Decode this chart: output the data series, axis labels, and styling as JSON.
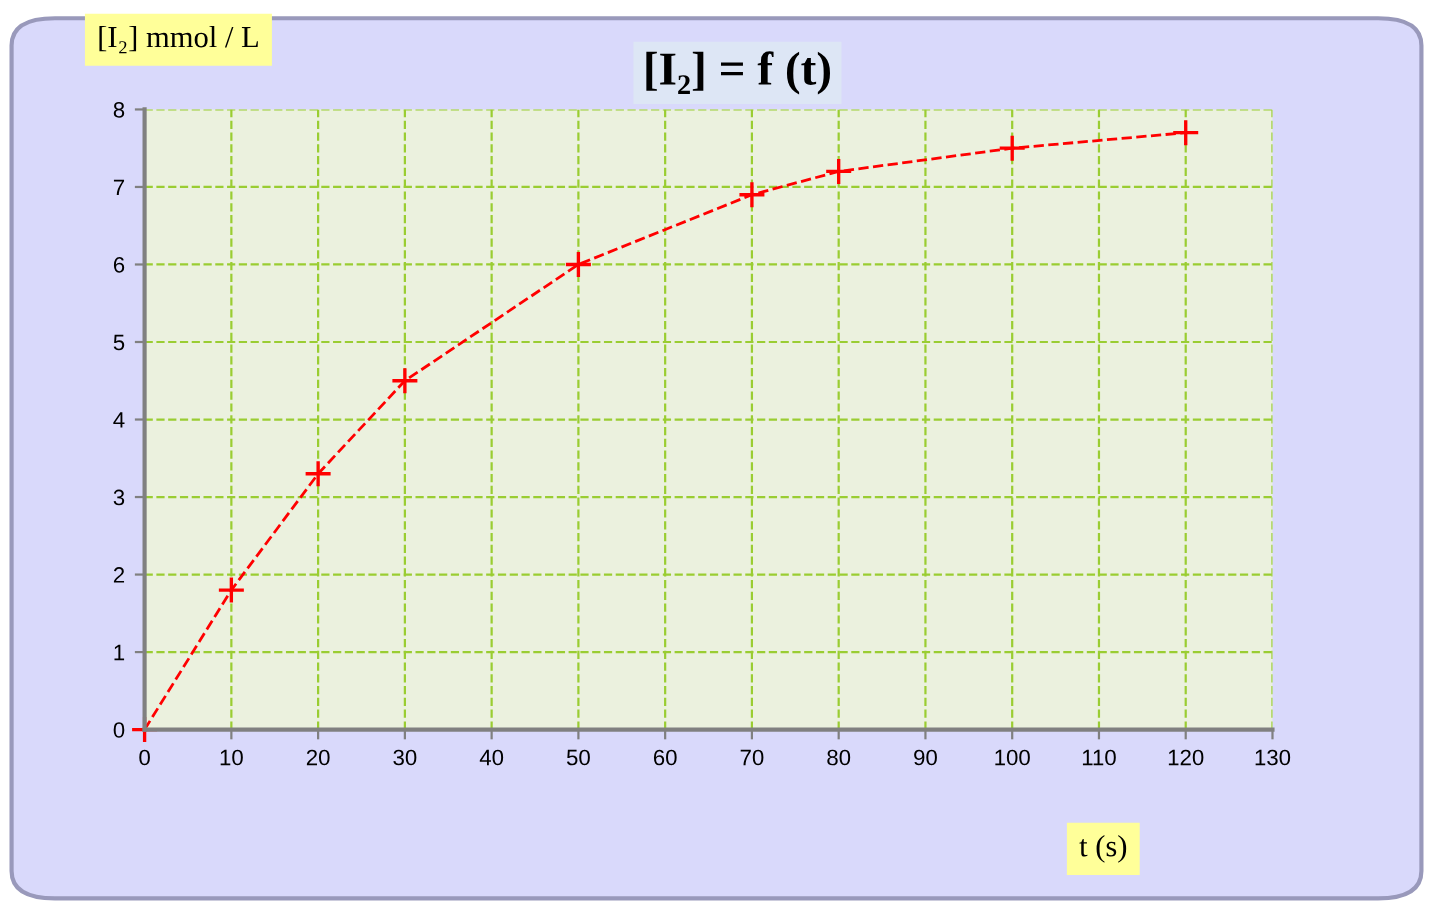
{
  "chart_data": {
    "type": "line",
    "title": "[I₂] = f (t)",
    "xlabel": "t (s)",
    "ylabel": "[I₂] mmol / L",
    "x": [
      0,
      10,
      20,
      30,
      50,
      70,
      80,
      100,
      120
    ],
    "series": [
      {
        "color": "#ff0000",
        "values": [
          0,
          1.8,
          3.3,
          4.5,
          6.0,
          6.9,
          7.2,
          7.5,
          7.7
        ]
      }
    ],
    "xlim": [
      0,
      130
    ],
    "xticks": [
      0,
      10,
      20,
      30,
      40,
      50,
      60,
      70,
      80,
      90,
      100,
      110,
      120,
      130
    ],
    "ylim": [
      0,
      8
    ],
    "yticks": [
      0,
      1,
      2,
      3,
      4,
      5,
      6,
      7,
      8
    ],
    "grid": true,
    "marker": "cross",
    "line_style": "dashed"
  }
}
